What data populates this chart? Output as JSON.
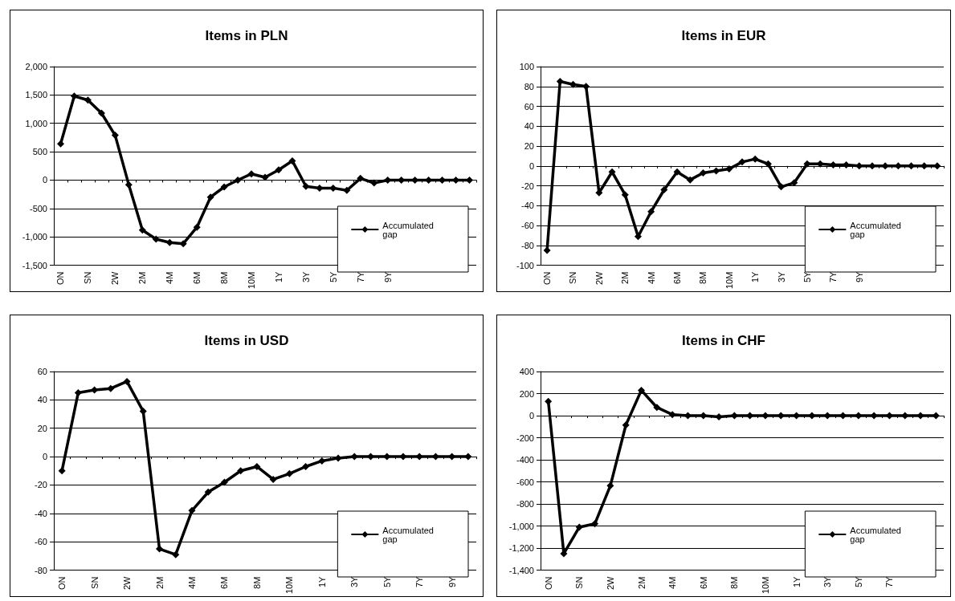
{
  "chart_data": [
    {
      "type": "line",
      "title": "Items in PLN",
      "categories": [
        "ON",
        null,
        "SN",
        null,
        "2W",
        null,
        "2M",
        null,
        "4M",
        null,
        "6M",
        null,
        "8M",
        null,
        "10M",
        null,
        "1Y",
        null,
        "3Y",
        null,
        "5Y",
        null,
        "7Y",
        null,
        "9Y",
        null,
        null,
        null,
        null,
        null,
        null
      ],
      "series": [
        {
          "name": "Accumulated gap",
          "color": "#000000",
          "values": [
            640,
            1480,
            1410,
            1180,
            790,
            -80,
            -880,
            -1040,
            -1100,
            -1120,
            -830,
            -300,
            -120,
            0,
            110,
            50,
            180,
            340,
            -110,
            -140,
            -140,
            -180,
            30,
            -50,
            0,
            0,
            0,
            0,
            0,
            0,
            0
          ]
        }
      ],
      "ylim": [
        -1500,
        2000
      ],
      "yticks": [
        {
          "value": -1500,
          "label": "-1,500"
        },
        {
          "value": -1000,
          "label": "-1,000"
        },
        -500,
        0,
        500,
        {
          "value": 1000,
          "label": "1,000"
        },
        {
          "value": 1500,
          "label": "1,500"
        },
        {
          "value": 2000,
          "label": "2,000"
        }
      ],
      "grid": "y",
      "legend": "bottom right",
      "marker": "diamond"
    },
    {
      "type": "line",
      "title": "Items in EUR",
      "categories": [
        "ON",
        null,
        "SN",
        null,
        "2W",
        null,
        "2M",
        null,
        "4M",
        null,
        "6M",
        null,
        "8M",
        null,
        "10M",
        null,
        "1Y",
        null,
        "3Y",
        null,
        "5Y",
        null,
        "7Y",
        null,
        "9Y",
        null,
        null,
        null,
        null,
        null,
        null
      ],
      "series": [
        {
          "name": "Accumulated gap",
          "color": "#000000",
          "values": [
            -85,
            85,
            82,
            80,
            -27,
            -6,
            -29,
            -71,
            -46,
            -24,
            -6,
            -14,
            -7,
            -5,
            -3,
            4,
            7,
            2,
            -21,
            -17,
            2,
            2,
            1,
            1,
            0,
            0,
            0,
            0,
            0,
            0,
            0
          ]
        }
      ],
      "ylim": [
        -100,
        100
      ],
      "yticks": [
        -100,
        -80,
        -60,
        -40,
        -20,
        0,
        20,
        40,
        60,
        80,
        100
      ],
      "grid": "y",
      "legend": "bottom right",
      "marker": "diamond"
    },
    {
      "type": "line",
      "title": "Items in USD",
      "categories": [
        "ON",
        null,
        "SN",
        null,
        "2W",
        null,
        "2M",
        null,
        "4M",
        null,
        "6M",
        null,
        "8M",
        null,
        "10M",
        null,
        "1Y",
        null,
        "3Y",
        null,
        "5Y",
        null,
        "7Y",
        null,
        "9Y",
        null
      ],
      "series": [
        {
          "name": "Accumulated gap",
          "color": "#000000",
          "values": [
            -10,
            45,
            47,
            48,
            53,
            32,
            -65,
            -69,
            -38,
            -25,
            -18,
            -10,
            -7,
            -16,
            -12,
            -7,
            -3,
            -1,
            0,
            0,
            0,
            0,
            0,
            0,
            0,
            0
          ]
        }
      ],
      "ylim": [
        -80,
        60
      ],
      "yticks": [
        -80,
        -60,
        -40,
        -20,
        0,
        20,
        40,
        60
      ],
      "grid": "y",
      "legend": "bottom right",
      "marker": "diamond"
    },
    {
      "type": "line",
      "title": "Items in CHF",
      "categories": [
        "ON",
        null,
        "SN",
        null,
        "2W",
        null,
        "2M",
        null,
        "4M",
        null,
        "6M",
        null,
        "8M",
        null,
        "10M",
        null,
        "1Y",
        null,
        "3Y",
        null,
        "5Y",
        null,
        "7Y",
        null,
        null,
        null
      ],
      "series": [
        {
          "name": "Accumulated gap",
          "color": "#000000",
          "values": [
            130,
            -1250,
            -1010,
            -980,
            -635,
            -85,
            230,
            75,
            10,
            0,
            0,
            -10,
            0,
            0,
            0,
            0,
            0,
            0,
            0,
            0,
            0,
            0,
            0,
            0,
            0,
            0
          ]
        }
      ],
      "ylim": [
        -1400,
        400
      ],
      "yticks": [
        {
          "value": -1400,
          "label": "-1,400"
        },
        {
          "value": -1200,
          "label": "-1,200"
        },
        {
          "value": -1000,
          "label": "-1,000"
        },
        -800,
        -600,
        -400,
        -200,
        0,
        200,
        400
      ],
      "grid": "y",
      "legend": "bottom right",
      "marker": "diamond"
    }
  ]
}
